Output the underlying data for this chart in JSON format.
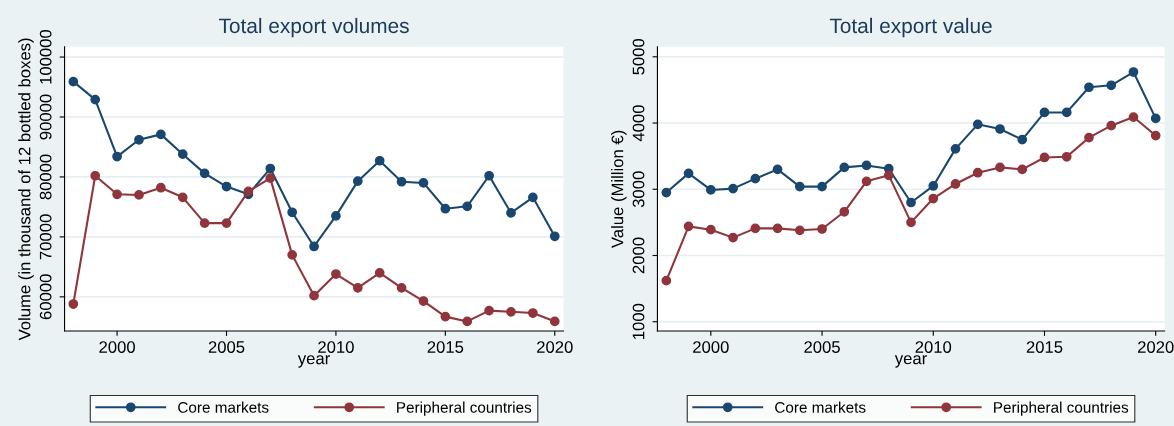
{
  "chart_data": [
    {
      "type": "line",
      "title": "Total export volumes",
      "xlabel": "year",
      "ylabel": "Volume (in thousand of 12 bottled boxes)",
      "x": [
        1998,
        1999,
        2000,
        2001,
        2002,
        2003,
        2004,
        2005,
        2006,
        2007,
        2008,
        2009,
        2010,
        2011,
        2012,
        2013,
        2014,
        2015,
        2016,
        2017,
        2018,
        2019,
        2020
      ],
      "series": [
        {
          "name": "Core markets",
          "color": "#1a476f",
          "values": [
            95900,
            92900,
            83400,
            86200,
            87100,
            83800,
            80600,
            78400,
            77100,
            81400,
            74100,
            68400,
            73500,
            79300,
            82700,
            79200,
            79000,
            74700,
            75100,
            80200,
            74000,
            76600,
            70100
          ]
        },
        {
          "name": "Peripheral countries",
          "color": "#90353b",
          "values": [
            58800,
            80200,
            77100,
            77000,
            78200,
            76600,
            72300,
            72300,
            77600,
            79800,
            67000,
            60200,
            63800,
            61500,
            64000,
            61500,
            59300,
            56700,
            55900,
            57700,
            57500,
            57300,
            55900
          ]
        }
      ],
      "xlim": [
        1997.6,
        2020.4
      ],
      "xticks": [
        2000,
        2005,
        2010,
        2015,
        2020
      ],
      "ylim": [
        54300,
        101700
      ],
      "yticks": [
        60000,
        70000,
        80000,
        90000,
        100000
      ],
      "grid": "y",
      "legend": "bottom",
      "marker": "circle",
      "line_style": "solid"
    },
    {
      "type": "line",
      "title": "Total export value",
      "xlabel": "year",
      "ylabel": "Value (Million €)",
      "x": [
        1998,
        1999,
        2000,
        2001,
        2002,
        2003,
        2004,
        2005,
        2006,
        2007,
        2008,
        2009,
        2010,
        2011,
        2012,
        2013,
        2014,
        2015,
        2016,
        2017,
        2018,
        2019,
        2020
      ],
      "series": [
        {
          "name": "Core markets",
          "color": "#1a476f",
          "values": [
            2950,
            3240,
            2990,
            3010,
            3160,
            3300,
            3040,
            3040,
            3330,
            3360,
            3310,
            2800,
            3050,
            3610,
            3980,
            3910,
            3750,
            4160,
            4160,
            4540,
            4570,
            4770,
            4070
          ]
        },
        {
          "name": "Peripheral countries",
          "color": "#90353b",
          "values": [
            1620,
            2440,
            2390,
            2270,
            2410,
            2410,
            2380,
            2400,
            2660,
            3120,
            3210,
            2500,
            2860,
            3080,
            3250,
            3330,
            3300,
            3480,
            3490,
            3780,
            3960,
            4090,
            3810
          ]
        }
      ],
      "xlim": [
        1997.6,
        2020.4
      ],
      "xticks": [
        2000,
        2005,
        2010,
        2015,
        2020
      ],
      "ylim": [
        860,
        5150
      ],
      "yticks": [
        1000,
        2000,
        3000,
        4000,
        5000
      ],
      "grid": "y",
      "legend": "bottom",
      "marker": "circle",
      "line_style": "solid"
    }
  ]
}
